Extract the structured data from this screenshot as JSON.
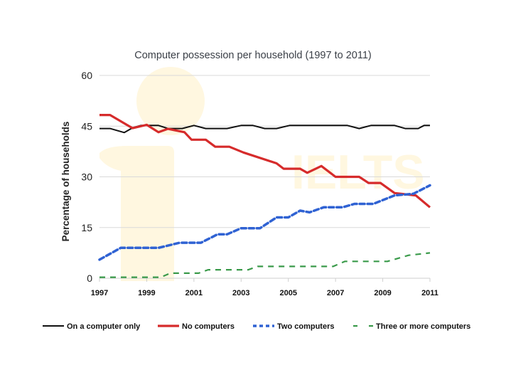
{
  "chart_data": {
    "type": "line",
    "title": "Computer possession per household (1997 to 2011)",
    "xlabel": "",
    "ylabel": "Percentage of households",
    "xlim": [
      1997,
      2011
    ],
    "ylim": [
      0,
      60
    ],
    "x_ticks": [
      "1997",
      "1999",
      "2001",
      "2003",
      "2005",
      "2007",
      "2009",
      "2011"
    ],
    "y_ticks": [
      "0",
      "15",
      "30",
      "45",
      "60"
    ],
    "grid": "horizontal",
    "legend_position": "bottom",
    "watermark": "IELTS",
    "series": [
      {
        "name": "On a computer only",
        "color": "#111111",
        "style": "solid",
        "points": [
          [
            1997,
            44.3
          ],
          [
            1997.45,
            44.3
          ],
          [
            1998.05,
            43.1
          ],
          [
            1998.4,
            44.5
          ],
          [
            1998.75,
            45.2
          ],
          [
            1999.5,
            45.2
          ],
          [
            1999.9,
            44.3
          ],
          [
            2000.5,
            44.3
          ],
          [
            2001,
            45.2
          ],
          [
            2001.5,
            44.3
          ],
          [
            2002.4,
            44.3
          ],
          [
            2003,
            45.2
          ],
          [
            2003.5,
            45.2
          ],
          [
            2004,
            44.3
          ],
          [
            2004.5,
            44.3
          ],
          [
            2005.05,
            45.2
          ],
          [
            2007.5,
            45.2
          ],
          [
            2008,
            44.3
          ],
          [
            2008.5,
            45.2
          ],
          [
            2009.5,
            45.2
          ],
          [
            2009.95,
            44.3
          ],
          [
            2010.5,
            44.3
          ],
          [
            2010.75,
            45.2
          ],
          [
            2011,
            45.2
          ]
        ]
      },
      {
        "name": "No computers",
        "color": "#d62b2b",
        "style": "solid",
        "points": [
          [
            1997,
            48.3
          ],
          [
            1997.45,
            48.3
          ],
          [
            1998.4,
            44.4
          ],
          [
            1999,
            45.4
          ],
          [
            1999.5,
            43.2
          ],
          [
            1999.9,
            44.2
          ],
          [
            2000.6,
            43.2
          ],
          [
            2000.9,
            41
          ],
          [
            2001.5,
            41
          ],
          [
            2001.9,
            38.9
          ],
          [
            2002.5,
            38.9
          ],
          [
            2003.1,
            37.2
          ],
          [
            2004.5,
            34
          ],
          [
            2004.8,
            32.4
          ],
          [
            2005.5,
            32.4
          ],
          [
            2005.8,
            31.2
          ],
          [
            2006.4,
            33.2
          ],
          [
            2007,
            30
          ],
          [
            2008,
            30
          ],
          [
            2008.4,
            28.2
          ],
          [
            2008.9,
            28.2
          ],
          [
            2009.5,
            25.2
          ],
          [
            2010.4,
            24.5
          ],
          [
            2011,
            21
          ]
        ]
      },
      {
        "name": "Two computers",
        "color": "#2f62d3",
        "style": "dotted",
        "points": [
          [
            1997,
            5.5
          ],
          [
            1997.9,
            9
          ],
          [
            1999.5,
            9
          ],
          [
            2000.4,
            10.5
          ],
          [
            2001.3,
            10.5
          ],
          [
            2002,
            13
          ],
          [
            2002.4,
            13
          ],
          [
            2003,
            14.8
          ],
          [
            2003.8,
            14.8
          ],
          [
            2004.5,
            18
          ],
          [
            2005,
            18
          ],
          [
            2005.5,
            20
          ],
          [
            2005.9,
            19.5
          ],
          [
            2006.5,
            21
          ],
          [
            2007.3,
            21
          ],
          [
            2007.8,
            22
          ],
          [
            2008.6,
            22
          ],
          [
            2009.5,
            24.5
          ],
          [
            2010.3,
            25
          ],
          [
            2011,
            27.5
          ]
        ]
      },
      {
        "name": "Three or more computers",
        "color": "#3a9a4a",
        "style": "dashed",
        "points": [
          [
            1997,
            0.3
          ],
          [
            1999.6,
            0.3
          ],
          [
            2000,
            1.5
          ],
          [
            2001.2,
            1.5
          ],
          [
            2001.6,
            2.5
          ],
          [
            2003.3,
            2.5
          ],
          [
            2003.7,
            3.5
          ],
          [
            2006.9,
            3.5
          ],
          [
            2007.4,
            5
          ],
          [
            2009.2,
            5
          ],
          [
            2010.1,
            6.8
          ],
          [
            2011,
            7.5
          ]
        ]
      }
    ]
  }
}
